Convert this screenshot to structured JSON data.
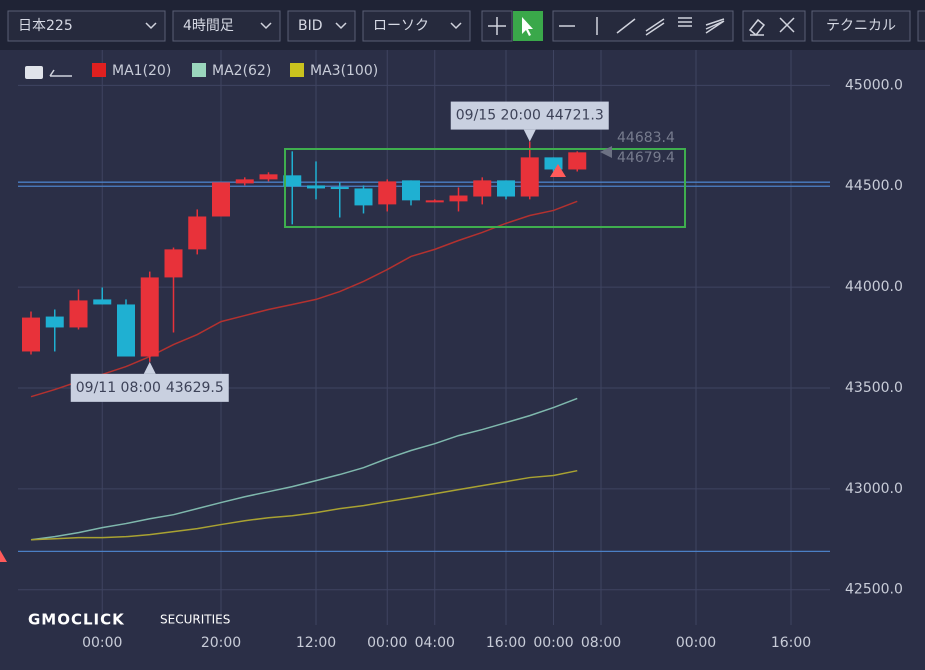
{
  "toolbar": {
    "dropdowns": [
      "日本225",
      "4時間足",
      "BID",
      "ローソク"
    ],
    "technical": "テクニカル"
  },
  "logo": {
    "brand": "GMOCLICK",
    "suffix": "SECURITIES"
  },
  "chart_data": {
    "type": "candlestick",
    "categories": [
      null,
      null,
      null,
      "00:00",
      null,
      null,
      null,
      null,
      "20:00",
      null,
      null,
      null,
      "12:00",
      null,
      null,
      "00:00",
      null,
      "04:00",
      null,
      null,
      "16:00",
      null,
      "00:00",
      null,
      "08:00",
      null,
      null,
      null,
      "00:00",
      null,
      null,
      null,
      "16:00",
      null
    ],
    "open": [
      43681,
      43854,
      43800,
      43939,
      43914,
      43656,
      44048,
      44187,
      44350,
      44514,
      44534,
      44554,
      44504,
      44496,
      44489,
      44410,
      44529,
      44425,
      44425,
      44449,
      44529,
      44449,
      44643,
      44583,
      null,
      null,
      null,
      null,
      null,
      null,
      null,
      null,
      null,
      null
    ],
    "high": [
      43879,
      43889,
      43988,
      43998,
      43939,
      44077,
      44196,
      44385,
      44519,
      44544,
      44569,
      44673,
      44623,
      44519,
      44504,
      44534,
      44529,
      44435,
      44494,
      44544,
      44529,
      44721.3,
      44643,
      44673,
      null,
      null,
      null,
      null,
      null,
      null,
      null,
      null,
      null,
      null
    ],
    "low": [
      43666,
      43681,
      43790,
      43914,
      43656,
      43629.5,
      43775,
      44162,
      44350,
      44504,
      44524,
      44311,
      44435,
      44345,
      44365,
      44375,
      44405,
      44420,
      44375,
      44410,
      44435,
      44435,
      44573,
      44573,
      null,
      null,
      null,
      null,
      null,
      null,
      null,
      null,
      null,
      null
    ],
    "close": [
      43849,
      43800,
      43934,
      43914,
      43656,
      44048,
      44187,
      44350,
      44519,
      44534,
      44559,
      44499,
      44489,
      44492,
      44405,
      44524,
      44430,
      44430,
      44454,
      44529,
      44449,
      44643,
      44583,
      44668,
      null,
      null,
      null,
      null,
      null,
      null,
      null,
      null,
      null,
      null
    ],
    "up_color": "#e8323a",
    "down_color": "#1fb0d2",
    "series": [
      {
        "name": "MA1(20)",
        "color": "#e02020",
        "line_color": "#b3312f",
        "values": [
          43457,
          43492,
          43532,
          43567,
          43606,
          43656,
          43715,
          43765,
          43829,
          43859,
          43889,
          43914,
          43939,
          43978,
          44028,
          44087,
          44152,
          44187,
          44231,
          44271,
          44316,
          44355,
          44380,
          44425,
          null,
          null,
          null,
          null,
          null,
          null,
          null,
          null,
          null,
          null
        ]
      },
      {
        "name": "MA2(62)",
        "color": "#9ad6bd",
        "line_color": "#7fb8ad",
        "values": [
          42748,
          42763,
          42783,
          42808,
          42828,
          42852,
          42872,
          42902,
          42932,
          42961,
          42986,
          43011,
          43041,
          43071,
          43105,
          43150,
          43190,
          43224,
          43264,
          43294,
          43328,
          43363,
          43403,
          43448,
          null,
          null,
          null,
          null,
          null,
          null,
          null,
          null,
          null,
          null
        ]
      },
      {
        "name": "MA3(100)",
        "color": "#c9c21e",
        "line_color": "#a9a232",
        "values": [
          42748,
          42753,
          42758,
          42758,
          42763,
          42773,
          42788,
          42803,
          42823,
          42842,
          42857,
          42867,
          42882,
          42902,
          42917,
          42937,
          42956,
          42976,
          42996,
          43016,
          43036,
          43056,
          43066,
          43090,
          null,
          null,
          null,
          null,
          null,
          null,
          null,
          null,
          null,
          null
        ]
      }
    ],
    "hlines": [
      44520,
      44500,
      42690
    ],
    "hline_color": "#4b7fc4",
    "ylim": [
      42350,
      45200
    ],
    "yticks": [
      {
        "value": 42500,
        "label": "42500.0"
      },
      {
        "value": 43000,
        "label": "43000.0"
      },
      {
        "value": 43500,
        "label": "43500.0"
      },
      {
        "value": 44000,
        "label": "44000.0"
      },
      {
        "value": 44500,
        "label": "44500.0"
      },
      {
        "value": 45000,
        "label": "45000.0"
      }
    ],
    "grid": true,
    "annotations": [
      {
        "label": "09/11 08:00",
        "value": 43629.5
      },
      {
        "label": "09/15 20:00",
        "value": 44721.3
      }
    ],
    "price_labels": [
      44683.4,
      44679.4
    ]
  }
}
